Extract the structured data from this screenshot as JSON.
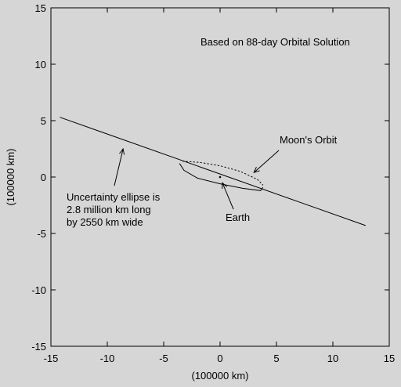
{
  "chart_data": {
    "type": "line",
    "title": "",
    "xlabel": "(100000 km)",
    "ylabel": "(100000 km)",
    "xlim": [
      -15,
      15
    ],
    "ylim": [
      -15,
      15
    ],
    "x_ticks": [
      -15,
      -10,
      -5,
      0,
      5,
      10,
      15
    ],
    "y_ticks": [
      -15,
      -10,
      -5,
      0,
      5,
      10,
      15
    ],
    "x_tick_labels": [
      "-15",
      "-10",
      "-5",
      "0",
      "5",
      "10",
      "15"
    ],
    "y_tick_labels": [
      "-15",
      "-10",
      "-5",
      "0",
      "5",
      "10",
      "15"
    ],
    "grid": false,
    "series": [
      {
        "style": "solid",
        "x": [
          -14.2,
          12.9
        ],
        "y": [
          5.3,
          -4.3
        ]
      },
      {
        "style": "solid",
        "x": [
          -3.6,
          -3.2,
          -2.0,
          0.0,
          2.0,
          3.6,
          3.8
        ],
        "y": [
          1.2,
          0.6,
          -0.1,
          -0.6,
          -1.0,
          -1.2,
          -0.9
        ]
      },
      {
        "style": "dotted",
        "x": [
          -3.3,
          -1.8,
          0.0,
          1.8,
          3.3,
          3.8
        ],
        "y": [
          1.4,
          1.3,
          1.0,
          0.5,
          -0.2,
          -0.7
        ]
      }
    ],
    "points": [
      {
        "x": 0,
        "y": 0
      }
    ],
    "annotations": [
      {
        "id": "solution",
        "lines": [
          "Based on 88-day Orbital Solution"
        ]
      },
      {
        "id": "moon",
        "lines": [
          "Moon's Orbit"
        ],
        "arrow_to": [
          3.0,
          0.4
        ]
      },
      {
        "id": "uncertainty",
        "lines": [
          "Uncertainty ellipse is",
          "2.8 million km long",
          "by 2550 km wide"
        ],
        "arrow_to": [
          -8.6,
          2.5
        ]
      },
      {
        "id": "earth",
        "lines": [
          "Earth"
        ],
        "arrow_to": [
          0.2,
          -0.5
        ]
      }
    ]
  }
}
